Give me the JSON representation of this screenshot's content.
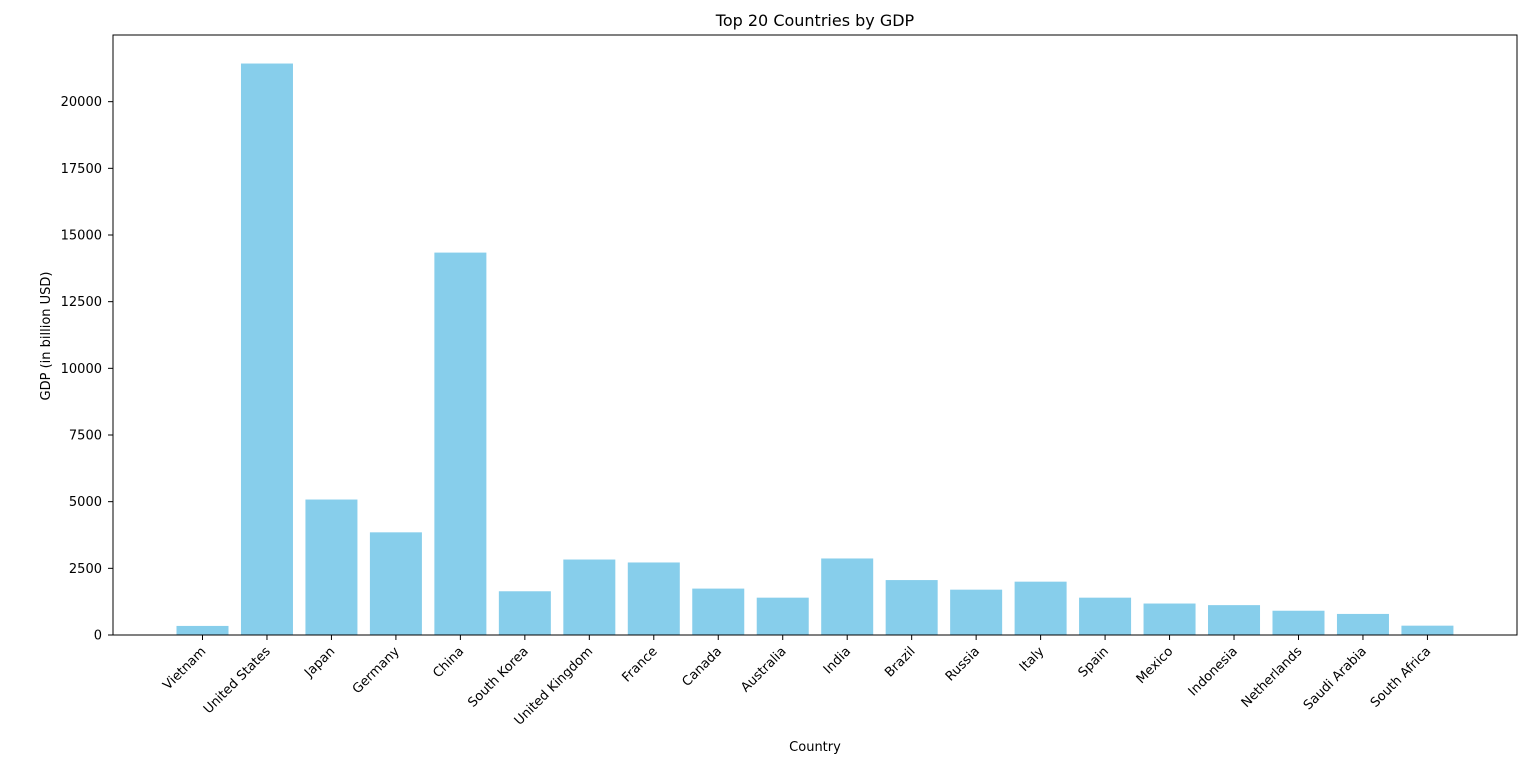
{
  "chart_data": {
    "type": "bar",
    "title": "Top 20 Countries by GDP",
    "xlabel": "Country",
    "ylabel": "GDP (in billion USD)",
    "categories": [
      "Vietnam",
      "United States",
      "Japan",
      "Germany",
      "China",
      "South Korea",
      "United Kingdom",
      "France",
      "Canada",
      "Australia",
      "India",
      "Brazil",
      "Russia",
      "Italy",
      "Spain",
      "Mexico",
      "Indonesia",
      "Netherlands",
      "Saudi Arabia",
      "South Africa"
    ],
    "values": [
      340,
      21430,
      5080,
      3850,
      14340,
      1640,
      2830,
      2720,
      1740,
      1400,
      2870,
      2060,
      1700,
      2000,
      1400,
      1180,
      1120,
      910,
      790,
      350
    ],
    "ylim": [
      0,
      22500
    ],
    "yticks": [
      0,
      2500,
      5000,
      7500,
      10000,
      12500,
      15000,
      17500,
      20000
    ],
    "grid": false,
    "bar_color": "#87CEEB",
    "axis_color": "#000000"
  }
}
